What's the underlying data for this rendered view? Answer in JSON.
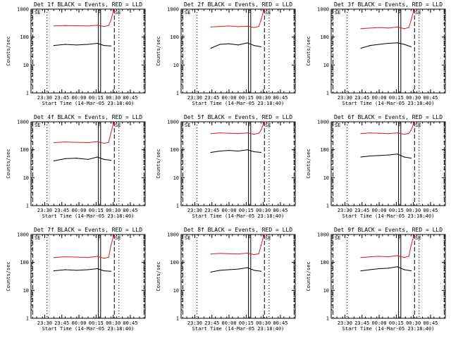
{
  "chart_data": [
    {
      "type": "line",
      "title": "Det 1f BLACK = Events, RED = LLD",
      "xlabel": "Start Time (14-Mar-05 23:18:40)",
      "ylabel": "Counts/sec",
      "y_scale": "log",
      "ylim": [
        1,
        1000
      ],
      "xlim": [
        "23:18",
        "00:58"
      ],
      "x_tick_labels": [
        "23:30",
        "23:45",
        "00:00",
        "00:15",
        "00:30",
        "00:45"
      ],
      "y_tick_labels": [
        "1",
        "10",
        "100",
        "1000"
      ],
      "flag_labels": [
        "SE",
        "F",
        "SE"
      ],
      "series": [
        {
          "color": "#000000",
          "x": [
            "23:38",
            "23:48",
            "23:58",
            "00:08",
            "00:16",
            "00:22",
            "00:28"
          ],
          "values": [
            50,
            55,
            52,
            55,
            60,
            50,
            48
          ]
        },
        {
          "color": "#e41a1c",
          "x": [
            "23:38",
            "23:48",
            "23:58",
            "00:08",
            "00:16",
            "00:22",
            "00:26",
            "00:28",
            "00:30",
            "00:31"
          ],
          "values": [
            250,
            260,
            255,
            250,
            265,
            240,
            260,
            400,
            800,
            1000
          ]
        }
      ]
    },
    {
      "type": "line",
      "title": "Det 2f BLACK = Events, RED = LLD",
      "xlabel": "Start Time (14-Mar-05 23:18:40)",
      "ylabel": "Counts/sec",
      "y_scale": "log",
      "ylim": [
        1,
        1000
      ],
      "xlim": [
        "23:18",
        "00:58"
      ],
      "x_tick_labels": [
        "23:30",
        "23:45",
        "00:00",
        "00:15",
        "00:30",
        "00:45"
      ],
      "y_tick_labels": [
        "1",
        "10",
        "100",
        "1000"
      ],
      "flag_labels": [
        "SE",
        "F",
        "SE"
      ],
      "series": [
        {
          "color": "#000000",
          "x": [
            "23:44",
            "23:52",
            "00:00",
            "00:08",
            "00:16",
            "00:22",
            "00:28"
          ],
          "values": [
            40,
            55,
            58,
            52,
            62,
            50,
            45
          ]
        },
        {
          "color": "#e41a1c",
          "x": [
            "23:44",
            "23:52",
            "00:00",
            "00:08",
            "00:16",
            "00:22",
            "00:26",
            "00:28",
            "00:30",
            "00:31"
          ],
          "values": [
            230,
            240,
            250,
            235,
            245,
            220,
            240,
            400,
            800,
            1000
          ]
        }
      ]
    },
    {
      "type": "line",
      "title": "Det 3f BLACK = Events, RED = LLD",
      "xlabel": "Start Time (14-Mar-05 23:18:40)",
      "ylabel": "Counts/sec",
      "y_scale": "log",
      "ylim": [
        1,
        1000
      ],
      "xlim": [
        "23:18",
        "00:58"
      ],
      "x_tick_labels": [
        "23:30",
        "23:45",
        "00:00",
        "00:15",
        "00:30",
        "00:45"
      ],
      "y_tick_labels": [
        "1",
        "10",
        "100",
        "1000"
      ],
      "flag_labels": [
        "SE",
        "F",
        "SE"
      ],
      "series": [
        {
          "color": "#000000",
          "x": [
            "23:44",
            "23:52",
            "00:00",
            "00:08",
            "00:16",
            "00:22",
            "00:28"
          ],
          "values": [
            40,
            50,
            55,
            60,
            62,
            55,
            45
          ]
        },
        {
          "color": "#e41a1c",
          "x": [
            "23:44",
            "23:52",
            "00:00",
            "00:08",
            "00:16",
            "00:22",
            "00:26",
            "00:28",
            "00:30",
            "00:31"
          ],
          "values": [
            200,
            210,
            220,
            210,
            230,
            200,
            220,
            400,
            800,
            1000
          ]
        }
      ]
    },
    {
      "type": "line",
      "title": "Det 4f BLACK = Events, RED = LLD",
      "xlabel": "Start Time (14-Mar-05 23:18:40)",
      "ylabel": "Counts/sec",
      "y_scale": "log",
      "ylim": [
        1,
        1000
      ],
      "xlim": [
        "23:18",
        "00:58"
      ],
      "x_tick_labels": [
        "23:30",
        "23:45",
        "00:00",
        "00:15",
        "00:30",
        "00:45"
      ],
      "y_tick_labels": [
        "1",
        "10",
        "100",
        "1000"
      ],
      "flag_labels": [
        "SE",
        "F",
        "SE"
      ],
      "series": [
        {
          "color": "#000000",
          "x": [
            "23:38",
            "23:48",
            "23:58",
            "00:08",
            "00:16",
            "00:22",
            "00:28"
          ],
          "values": [
            40,
            48,
            50,
            45,
            55,
            45,
            42
          ]
        },
        {
          "color": "#e41a1c",
          "x": [
            "23:38",
            "23:48",
            "23:58",
            "00:08",
            "00:16",
            "00:22",
            "00:26",
            "00:28",
            "00:30",
            "00:31"
          ],
          "values": [
            180,
            190,
            185,
            180,
            195,
            170,
            185,
            400,
            800,
            1000
          ]
        }
      ]
    },
    {
      "type": "line",
      "title": "Det 5f BLACK = Events, RED = LLD",
      "xlabel": "Start Time (14-Mar-05 23:18:40)",
      "ylabel": "Counts/sec",
      "y_scale": "log",
      "ylim": [
        1,
        1000
      ],
      "xlim": [
        "23:18",
        "00:58"
      ],
      "x_tick_labels": [
        "23:30",
        "23:45",
        "00:00",
        "00:15",
        "00:30",
        "00:45"
      ],
      "y_tick_labels": [
        "1",
        "10",
        "100",
        "1000"
      ],
      "flag_labels": [
        "SE",
        "F",
        "SE"
      ],
      "series": [
        {
          "color": "#000000",
          "x": [
            "23:44",
            "23:52",
            "00:00",
            "00:08",
            "00:16",
            "00:22",
            "00:28"
          ],
          "values": [
            80,
            90,
            95,
            90,
            100,
            85,
            80
          ]
        },
        {
          "color": "#e41a1c",
          "x": [
            "23:44",
            "23:52",
            "00:00",
            "00:08",
            "00:16",
            "00:22",
            "00:26",
            "00:28",
            "00:30",
            "00:31"
          ],
          "values": [
            380,
            400,
            390,
            380,
            400,
            360,
            390,
            500,
            800,
            1000
          ]
        }
      ]
    },
    {
      "type": "line",
      "title": "Det 6f BLACK = Events, RED = LLD",
      "xlabel": "Start Time (14-Mar-05 23:18:40)",
      "ylabel": "Counts/sec",
      "y_scale": "log",
      "ylim": [
        1,
        1000
      ],
      "xlim": [
        "23:18",
        "00:58"
      ],
      "x_tick_labels": [
        "23:30",
        "23:45",
        "00:00",
        "00:15",
        "00:30",
        "00:45"
      ],
      "y_tick_labels": [
        "1",
        "10",
        "100",
        "1000"
      ],
      "flag_labels": [
        "SE",
        "F",
        "SE"
      ],
      "series": [
        {
          "color": "#000000",
          "x": [
            "23:44",
            "23:52",
            "00:00",
            "00:08",
            "00:16",
            "00:22",
            "00:28"
          ],
          "values": [
            55,
            60,
            62,
            65,
            70,
            55,
            50
          ]
        },
        {
          "color": "#e41a1c",
          "x": [
            "23:44",
            "23:52",
            "00:00",
            "00:08",
            "00:16",
            "00:22",
            "00:26",
            "00:28",
            "00:30",
            "00:31"
          ],
          "values": [
            380,
            400,
            390,
            380,
            400,
            360,
            390,
            500,
            800,
            1000
          ]
        }
      ]
    },
    {
      "type": "line",
      "title": "Det 7f BLACK = Events, RED = LLD",
      "xlabel": "Start Time (14-Mar-05 23:18:40)",
      "ylabel": "Counts/sec",
      "y_scale": "log",
      "ylim": [
        1,
        1000
      ],
      "xlim": [
        "23:18",
        "00:58"
      ],
      "x_tick_labels": [
        "23:30",
        "23:45",
        "00:00",
        "00:15",
        "00:30",
        "00:45"
      ],
      "y_tick_labels": [
        "1",
        "10",
        "100",
        "1000"
      ],
      "flag_labels": [
        "SE",
        "F",
        "SE"
      ],
      "series": [
        {
          "color": "#000000",
          "x": [
            "23:38",
            "23:48",
            "23:58",
            "00:08",
            "00:16",
            "00:22",
            "00:28"
          ],
          "values": [
            50,
            55,
            52,
            55,
            60,
            50,
            48
          ]
        },
        {
          "color": "#e41a1c",
          "x": [
            "23:38",
            "23:48",
            "23:58",
            "00:08",
            "00:16",
            "00:22",
            "00:26",
            "00:28",
            "00:30",
            "00:31"
          ],
          "values": [
            150,
            160,
            155,
            150,
            165,
            140,
            155,
            400,
            800,
            1000
          ]
        }
      ]
    },
    {
      "type": "line",
      "title": "Det 8f BLACK = Events, RED = LLD",
      "xlabel": "Start Time (14-Mar-05 23:18:40)",
      "ylabel": "Counts/sec",
      "y_scale": "log",
      "ylim": [
        1,
        1000
      ],
      "xlim": [
        "23:18",
        "00:58"
      ],
      "x_tick_labels": [
        "23:30",
        "23:45",
        "00:00",
        "00:15",
        "00:30",
        "00:45"
      ],
      "y_tick_labels": [
        "1",
        "10",
        "100",
        "1000"
      ],
      "flag_labels": [
        "SE",
        "F",
        "SE"
      ],
      "series": [
        {
          "color": "#000000",
          "x": [
            "23:44",
            "23:52",
            "00:00",
            "00:08",
            "00:16",
            "00:22",
            "00:28"
          ],
          "values": [
            45,
            52,
            55,
            58,
            65,
            52,
            48
          ]
        },
        {
          "color": "#e41a1c",
          "x": [
            "23:44",
            "23:52",
            "00:00",
            "00:08",
            "00:16",
            "00:22",
            "00:26",
            "00:28",
            "00:30",
            "00:31"
          ],
          "values": [
            200,
            210,
            205,
            200,
            215,
            190,
            205,
            400,
            800,
            1000
          ]
        }
      ]
    },
    {
      "type": "line",
      "title": "Det 9f BLACK = Events, RED = LLD",
      "xlabel": "Start Time (14-Mar-05 23:18:40)",
      "ylabel": "Counts/sec",
      "y_scale": "log",
      "ylim": [
        1,
        1000
      ],
      "xlim": [
        "23:18",
        "00:58"
      ],
      "x_tick_labels": [
        "23:30",
        "23:45",
        "00:00",
        "00:15",
        "00:30",
        "00:45"
      ],
      "y_tick_labels": [
        "1",
        "10",
        "100",
        "1000"
      ],
      "flag_labels": [
        "SE",
        "F",
        "SE"
      ],
      "series": [
        {
          "color": "#000000",
          "x": [
            "23:44",
            "23:52",
            "00:00",
            "00:08",
            "00:16",
            "00:22",
            "00:28"
          ],
          "values": [
            50,
            55,
            60,
            62,
            70,
            55,
            50
          ]
        },
        {
          "color": "#e41a1c",
          "x": [
            "23:44",
            "23:52",
            "00:00",
            "00:08",
            "00:16",
            "00:22",
            "00:26",
            "00:28",
            "00:30",
            "00:31"
          ],
          "values": [
            150,
            160,
            165,
            160,
            175,
            150,
            165,
            400,
            800,
            1000
          ]
        }
      ]
    }
  ]
}
